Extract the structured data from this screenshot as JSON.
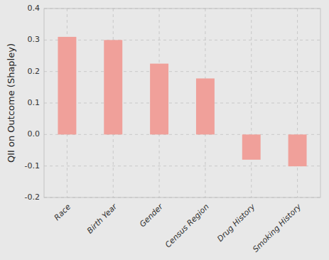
{
  "chart_data": {
    "type": "bar",
    "categories": [
      "Race",
      "Birth Year",
      "Gender",
      "Census Region",
      "Drug History",
      "Smoking History"
    ],
    "values": [
      0.31,
      0.3,
      0.225,
      0.178,
      -0.08,
      -0.101
    ],
    "color": "#f0a09a",
    "ylabel": "QII on Outcome (Shapley)",
    "ylim": [
      -0.2,
      0.4
    ],
    "yticks": [
      -0.2,
      -0.1,
      {
        "value": 0,
        "label": "0.0"
      },
      0.1,
      0.2,
      0.3,
      0.4
    ],
    "grid": true
  }
}
